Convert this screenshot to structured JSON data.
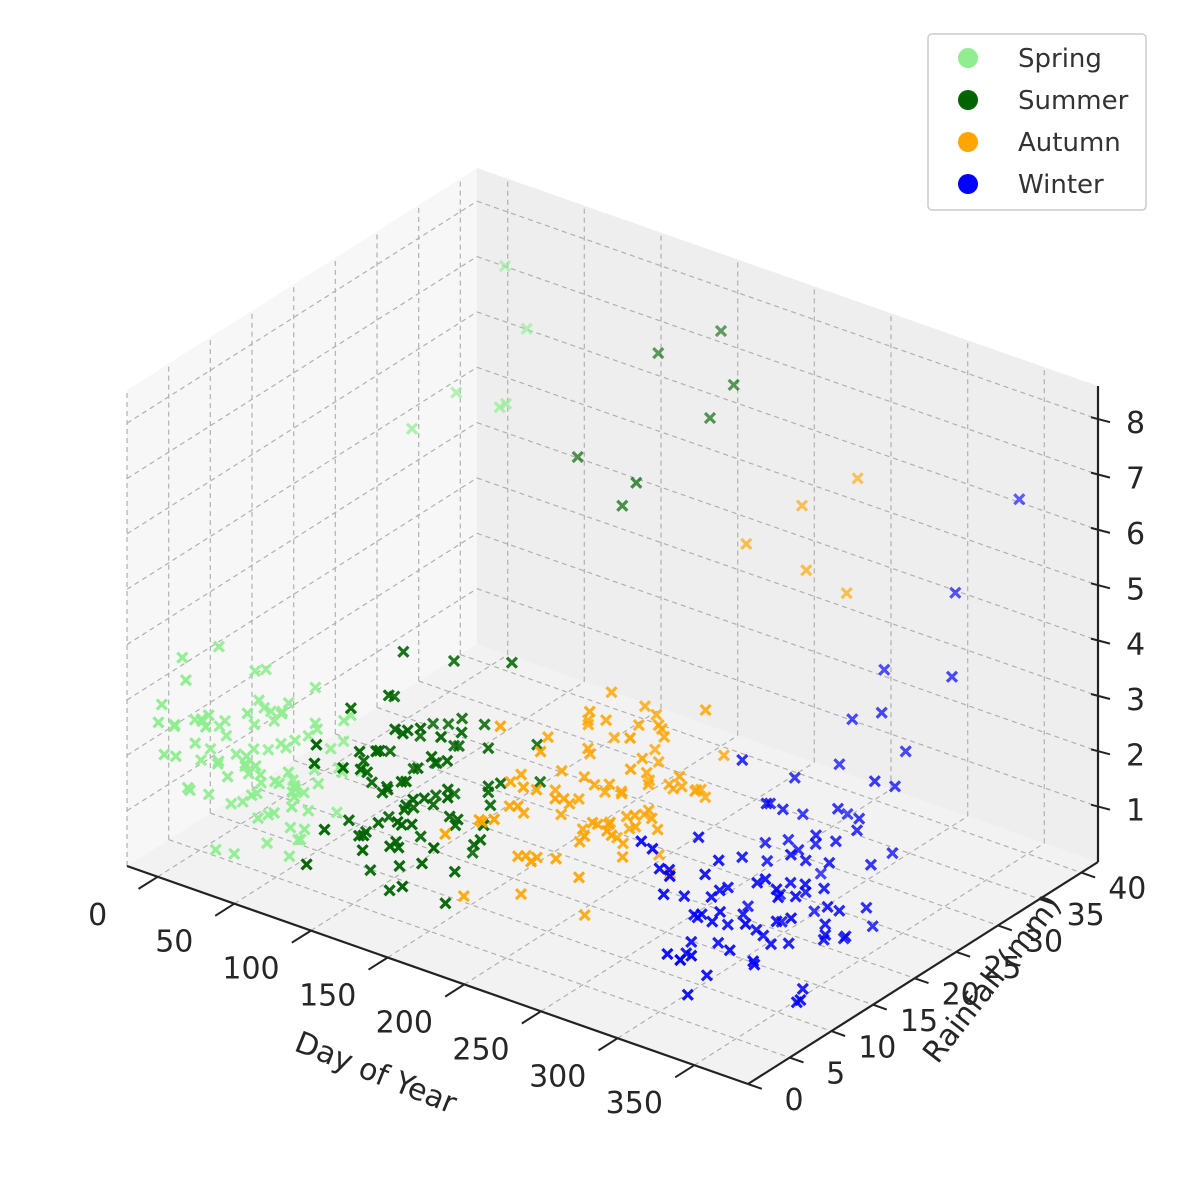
{
  "chart_data": {
    "type": "scatter",
    "projection": "3d",
    "xlabel": "Day of Year",
    "ylabel": "Rainfall (mm)",
    "zlabel": "",
    "xlim": [
      -20,
      385
    ],
    "ylim": [
      0,
      42
    ],
    "zlim": [
      0,
      8.6
    ],
    "xticks": [
      0,
      50,
      100,
      150,
      200,
      250,
      300,
      350
    ],
    "yticks": [
      0,
      5,
      10,
      15,
      20,
      25,
      30,
      35,
      40
    ],
    "zticks": [
      1,
      2,
      3,
      4,
      5,
      6,
      7,
      8
    ],
    "grid": true,
    "legend_position": "top-right",
    "marker": "x",
    "series": [
      {
        "name": "Spring",
        "color": "#90ee90",
        "seed": 11,
        "day_range": [
          0,
          90
        ],
        "rain_mean": 4.5,
        "rain_spread": 8,
        "z_mean": 2.3,
        "z_spread": 1.6,
        "count": 90,
        "extra": [
          [
            20,
            38,
            7.6
          ],
          [
            45,
            36,
            6.9
          ],
          [
            60,
            30,
            6.2
          ],
          [
            10,
            34,
            5.6
          ],
          [
            75,
            28,
            6.6
          ],
          [
            30,
            25,
            6.0
          ]
        ]
      },
      {
        "name": "Summer",
        "color": "#006400",
        "seed": 23,
        "day_range": [
          92,
          182
        ],
        "rain_mean": 6,
        "rain_spread": 9,
        "z_mean": 2.4,
        "z_spread": 1.6,
        "count": 90,
        "extra": [
          [
            150,
            40,
            7.5
          ],
          [
            120,
            38,
            7.0
          ],
          [
            170,
            35,
            6.6
          ],
          [
            100,
            32,
            5.5
          ],
          [
            140,
            30,
            5.2
          ],
          [
            160,
            28,
            6.0
          ],
          [
            180,
            36,
            7.2
          ]
        ]
      },
      {
        "name": "Autumn",
        "color": "#ffa500",
        "seed": 37,
        "day_range": [
          183,
          273
        ],
        "rain_mean": 11,
        "rain_spread": 10,
        "z_mean": 2.5,
        "z_spread": 1.8,
        "count": 90,
        "extra": [
          [
            230,
            35,
            5.6
          ],
          [
            260,
            30,
            5.2
          ],
          [
            210,
            32,
            5.0
          ],
          [
            250,
            38,
            6.0
          ],
          [
            270,
            33,
            4.6
          ]
        ]
      },
      {
        "name": "Winter",
        "color": "#0000ff",
        "seed": 53,
        "day_range": [
          275,
          365
        ],
        "rain_mean": 15,
        "rain_spread": 12,
        "z_mean": 1.5,
        "z_spread": 1.4,
        "count": 90,
        "extra": [
          [
            350,
            39,
            6.5
          ],
          [
            330,
            35,
            5.0
          ],
          [
            355,
            30,
            4.2
          ],
          [
            300,
            32,
            3.6
          ],
          [
            320,
            28,
            3.4
          ],
          [
            345,
            25,
            2.6
          ],
          [
            290,
            30,
            2.8
          ]
        ]
      }
    ]
  }
}
